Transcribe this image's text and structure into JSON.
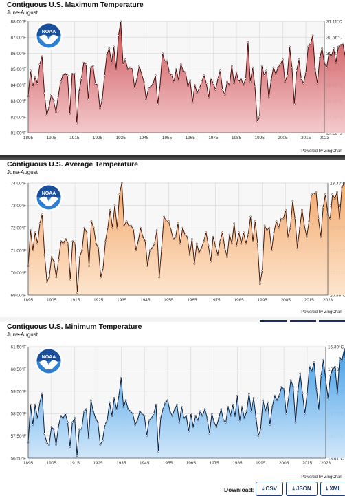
{
  "download": {
    "label": "Download:",
    "buttons": [
      {
        "label": "CSV",
        "icon": "download-icon"
      },
      {
        "label": "JSON",
        "icon": "download-icon"
      },
      {
        "label": "XML",
        "icon": "download-icon"
      }
    ]
  },
  "logo_text": "NOAA",
  "chart_data": [
    {
      "type": "line",
      "title": "Contiguous U.S. Maximum Temperature",
      "subtitle": "June-August",
      "credit": "Powered by ZingChart",
      "ylim": [
        81.0,
        88.0
      ],
      "yticks": [
        "81.00°F",
        "82.00°F",
        "83.00°F",
        "84.00°F",
        "85.00°F",
        "86.00°F",
        "87.00°F",
        "88.00°F"
      ],
      "y2ticks": [
        {
          "label": "27.22°C",
          "v": 81.0
        },
        {
          "label": "27.78°C",
          "v": 82.0
        },
        {
          "label": "28.33°C",
          "v": 83.0
        },
        {
          "label": "28.89°C",
          "v": 84.0
        },
        {
          "label": "29.44°C",
          "v": 85.0
        },
        {
          "label": "30.00°C",
          "v": 86.0
        },
        {
          "label": "30.56°C",
          "v": 87.0
        },
        {
          "label": "31.11°C",
          "v": 88.0
        }
      ],
      "xlim": [
        1895,
        2023
      ],
      "xticks": [
        "1895",
        "1905",
        "1915",
        "1925",
        "1935",
        "1945",
        "1955",
        "1965",
        "1975",
        "1985",
        "1995",
        "2005",
        "2015",
        "2023"
      ],
      "grid": true,
      "line_color": "#4a0f0f",
      "fill_top": "#c9484c",
      "fill_bottom": "#f4c8cb",
      "x_start": 1895,
      "values": [
        83.3,
        84.9,
        83.9,
        84.5,
        84.1,
        85.3,
        85.8,
        83.5,
        82.1,
        82.6,
        83.4,
        83.0,
        82.3,
        83.3,
        84.2,
        84.6,
        84.7,
        84.6,
        82.2,
        84.7,
        84.7,
        81.6,
        83.6,
        84.4,
        85.4,
        85.3,
        83.1,
        85.1,
        85.2,
        84.1,
        84.0,
        82.5,
        83.1,
        84.6,
        85.9,
        86.3,
        85.4,
        86.4,
        85.0,
        87.1,
        88.0,
        85.3,
        85.6,
        85.0,
        85.1,
        85.0,
        83.8,
        84.4,
        85.2,
        84.7,
        84.2,
        83.1,
        83.8,
        83.9,
        84.1,
        84.6,
        82.8,
        84.0,
        86.0,
        85.5,
        85.5,
        84.8,
        84.6,
        84.2,
        85.0,
        84.3,
        85.3,
        84.9,
        84.8,
        83.9,
        84.3,
        82.9,
        84.0,
        83.5,
        83.8,
        84.2,
        84.6,
        84.1,
        83.2,
        84.4,
        84.1,
        83.7,
        84.4,
        84.9,
        83.7,
        83.4,
        84.2,
        84.0,
        85.2,
        84.1,
        84.8,
        84.2,
        84.4,
        84.0,
        84.4,
        86.7,
        84.2,
        85.1,
        83.9,
        81.7,
        82.0,
        85.2,
        84.6,
        84.9,
        83.2,
        84.3,
        85.1,
        84.7,
        85.1,
        85.3,
        85.6,
        84.2,
        84.6,
        86.4,
        85.1,
        82.8,
        84.9,
        85.6,
        84.4,
        84.1,
        84.8,
        86.4,
        86.6,
        87.1,
        85.0,
        84.1,
        85.7,
        86.3,
        85.4,
        85.1,
        86.0,
        85.8,
        86.3,
        85.4,
        86.4,
        86.5,
        86.6,
        85.8
      ]
    },
    {
      "type": "line",
      "title": "Contiguous U.S. Average Temperature",
      "subtitle": "June-August",
      "credit": "Powered by ZingChart",
      "ylim": [
        69.0,
        74.0
      ],
      "yticks": [
        "69.00°F",
        "70.00°F",
        "71.00°F",
        "72.00°F",
        "73.00°F",
        "74.00°F"
      ],
      "y2ticks": [
        {
          "label": "20.56°C",
          "v": 69.0
        },
        {
          "label": "21.11°C",
          "v": 70.0
        },
        {
          "label": "21.67°C",
          "v": 71.0
        },
        {
          "label": "22.22°C",
          "v": 72.0
        },
        {
          "label": "22.78°C",
          "v": 73.0
        },
        {
          "label": "23.33°C",
          "v": 74.0
        }
      ],
      "xlim": [
        1895,
        2023
      ],
      "xticks": [
        "1895",
        "1905",
        "1915",
        "1925",
        "1935",
        "1945",
        "1955",
        "1965",
        "1975",
        "1985",
        "1995",
        "2005",
        "2015",
        "2023"
      ],
      "grid": true,
      "line_color": "#4a1a08",
      "fill_top": "#f2a567",
      "fill_bottom": "#fde4cb",
      "x_start": 1895,
      "values": [
        70.3,
        71.9,
        71.0,
        71.8,
        71.3,
        72.2,
        72.6,
        70.8,
        69.6,
        69.8,
        70.7,
        70.5,
        69.8,
        70.6,
        71.4,
        71.3,
        71.5,
        71.3,
        69.7,
        71.4,
        71.3,
        69.1,
        70.7,
        71.0,
        72.0,
        71.8,
        70.3,
        72.3,
        72.0,
        71.3,
        71.1,
        69.8,
        70.2,
        71.4,
        72.0,
        72.8,
        72.0,
        73.0,
        72.0,
        73.5,
        74.0,
        72.1,
        72.3,
        72.1,
        72.1,
        71.9,
        71.0,
        71.4,
        72.0,
        71.6,
        71.4,
        70.3,
        71.0,
        71.1,
        71.3,
        71.9,
        69.8,
        71.1,
        72.5,
        72.3,
        72.3,
        71.9,
        71.5,
        71.6,
        72.2,
        71.3,
        72.0,
        71.7,
        71.6,
        70.8,
        71.5,
        70.4,
        71.3,
        70.9,
        71.1,
        71.4,
        71.8,
        71.2,
        70.5,
        71.6,
        71.2,
        70.8,
        71.4,
        71.8,
        71.1,
        70.7,
        71.7,
        71.3,
        72.2,
        71.2,
        71.8,
        71.3,
        71.8,
        71.3,
        71.7,
        72.5,
        71.4,
        72.3,
        71.3,
        69.5,
        70.1,
        72.1,
        71.9,
        72.0,
        71.0,
        71.8,
        72.3,
        72.0,
        72.4,
        72.4,
        72.8,
        71.6,
        72.0,
        73.2,
        72.4,
        71.1,
        72.0,
        72.8,
        72.1,
        71.6,
        72.3,
        73.5,
        73.5,
        73.6,
        72.4,
        71.6,
        72.9,
        73.5,
        72.6,
        72.4,
        73.5,
        73.3,
        73.6,
        72.4,
        73.8,
        74.0,
        73.9,
        73.3
      ]
    },
    {
      "type": "line",
      "title": "Contiguous U.S. Minimum Temperature",
      "subtitle": "June-August",
      "credit": "Powered by ZingChart",
      "ylim": [
        56.5,
        61.5
      ],
      "yticks": [
        "56.50°F",
        "57.50°F",
        "58.50°F",
        "59.50°F",
        "60.50°F",
        "61.50°F"
      ],
      "y2ticks": [
        {
          "label": "13.61°C",
          "v": 56.5
        },
        {
          "label": "14.17°C",
          "v": 57.5
        },
        {
          "label": "14.72°C",
          "v": 58.5
        },
        {
          "label": "15.28°C",
          "v": 59.5
        },
        {
          "label": "15.83°C",
          "v": 60.5
        },
        {
          "label": "16.39°C",
          "v": 61.5
        }
      ],
      "xlim": [
        1895,
        2023
      ],
      "xticks": [
        "1895",
        "1905",
        "1915",
        "1925",
        "1935",
        "1945",
        "1955",
        "1965",
        "1975",
        "1985",
        "1995",
        "2005",
        "2015",
        "2023"
      ],
      "grid": true,
      "line_color": "#0b1f3f",
      "fill_top": "#3d9be6",
      "fill_bottom": "#cfe6fa",
      "x_start": 1895,
      "values": [
        57.2,
        58.9,
        58.0,
        58.9,
        58.3,
        59.0,
        59.4,
        57.6,
        57.2,
        57.1,
        57.9,
        57.8,
        57.1,
        57.9,
        58.4,
        58.3,
        58.5,
        58.1,
        57.0,
        58.1,
        58.3,
        56.6,
        57.8,
        57.8,
        58.6,
        58.7,
        57.4,
        59.1,
        58.6,
        58.3,
        58.1,
        57.1,
        57.3,
        58.0,
        58.2,
        59.0,
        58.4,
        59.2,
        58.7,
        59.3,
        60.1,
        58.8,
        59.1,
        58.7,
        58.6,
        58.5,
        58.0,
        58.2,
        58.6,
        58.5,
        58.4,
        57.5,
        58.2,
        58.3,
        58.5,
        58.9,
        56.8,
        58.3,
        58.7,
        59.0,
        59.1,
        58.6,
        58.4,
        58.7,
        58.9,
        58.1,
        58.8,
        58.3,
        58.4,
        57.7,
        58.5,
        57.9,
        58.4,
        58.2,
        58.6,
        58.4,
        58.7,
        58.3,
        57.6,
        58.5,
        58.1,
        57.9,
        58.3,
        58.7,
        58.2,
        58.1,
        58.8,
        58.4,
        58.9,
        58.4,
        59.3,
        58.2,
        58.8,
        58.3,
        58.6,
        59.4,
        58.6,
        59.2,
        58.3,
        57.5,
        57.8,
        59.1,
        58.6,
        59.0,
        58.0,
        58.8,
        59.3,
        59.1,
        59.3,
        59.7,
        59.6,
        58.5,
        59.2,
        60.0,
        59.7,
        58.1,
        59.5,
        60.3,
        59.4,
        58.5,
        59.4,
        60.6,
        60.4,
        60.8,
        59.6,
        58.7,
        60.2,
        60.9,
        60.0,
        59.2,
        60.2,
        60.5,
        60.6,
        59.4,
        61.0,
        60.9,
        61.4,
        60.3
      ]
    }
  ]
}
